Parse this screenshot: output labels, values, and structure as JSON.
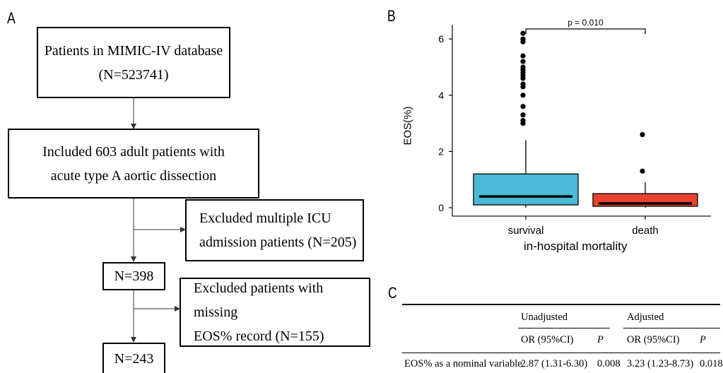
{
  "panels": {
    "a": "A",
    "b": "B",
    "c": "C"
  },
  "flowchart": {
    "box1": [
      "Patients in MIMIC-IV database",
      "(N=523741)"
    ],
    "box2": [
      "Included 603 adult patients with",
      "acute type A aortic dissection"
    ],
    "exclusion1": [
      "Excluded multiple ICU",
      "admission patients (N=205)"
    ],
    "box3": "N=398",
    "exclusion2": [
      "Excluded patients with missing",
      "EOS% record (N=155)"
    ],
    "box4": "N=243"
  },
  "chart_data": {
    "type": "box",
    "xlabel": "in-hospital mortality",
    "ylabel": "EOS(%)",
    "ylim": [
      -0.3,
      6.5
    ],
    "yticks": [
      0,
      2,
      4,
      6
    ],
    "categories": [
      "survival",
      "death"
    ],
    "colors": [
      "#4BBAD7",
      "#E8432E"
    ],
    "boxes": [
      {
        "q1": 0.1,
        "median": 0.4,
        "q3": 1.2,
        "whisker_low": 0.0,
        "whisker_high": 2.4,
        "outliers": [
          3.0,
          3.1,
          3.3,
          3.6,
          4.0,
          4.3,
          4.4,
          4.6,
          4.7,
          4.8,
          4.9,
          5.0,
          5.2,
          5.4,
          5.9,
          6.0,
          6.2
        ]
      },
      {
        "q1": 0.05,
        "median": 0.15,
        "q3": 0.5,
        "whisker_low": 0.0,
        "whisker_high": 0.9,
        "outliers": [
          1.3,
          2.6
        ]
      }
    ],
    "annotation": "p = 0.010"
  },
  "table": {
    "group_headers": [
      "Unadjusted",
      "Adjusted"
    ],
    "sub_headers": [
      "OR (95%CI)",
      "P",
      "OR (95%CI)",
      "P"
    ],
    "rows": [
      {
        "label": "EOS% as a nominal variable",
        "values": [
          "2.87 (1.31-6.30)",
          "0.008",
          "3.23 (1.23-8.73)",
          "0.018"
        ]
      }
    ]
  }
}
